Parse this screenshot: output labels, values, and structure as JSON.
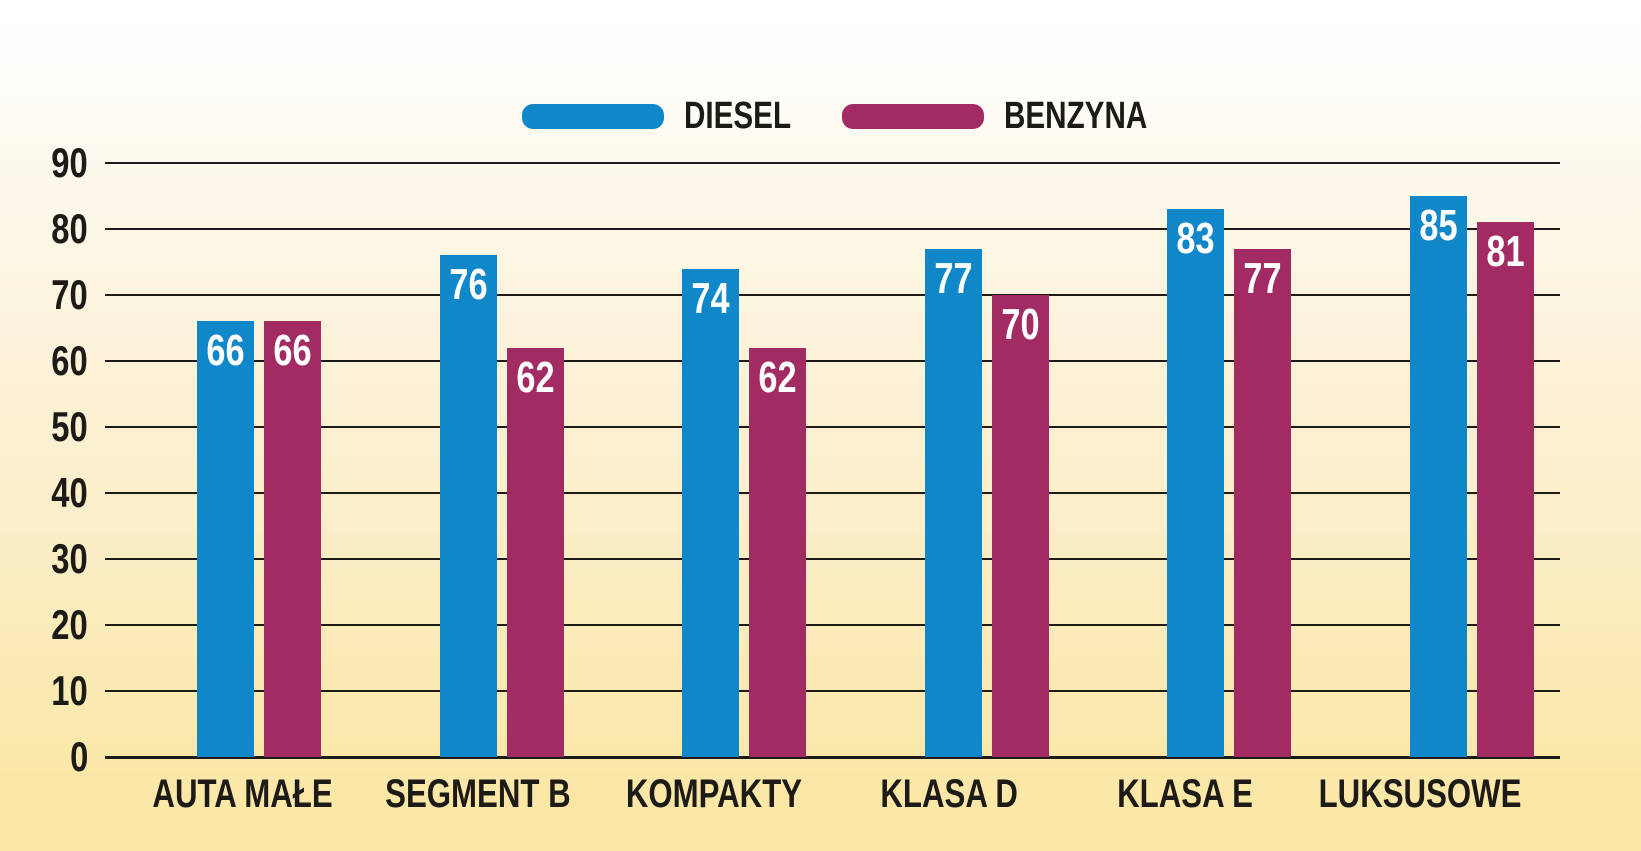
{
  "chart_data": {
    "type": "bar",
    "title": "",
    "categories": [
      "AUTA MAŁE",
      "SEGMENT B",
      "KOMPAKTY",
      "KLASA D",
      "KLASA E",
      "LUKSUSOWE"
    ],
    "series": [
      {
        "name": "DIESEL",
        "color": "#0f87c8",
        "values": [
          66,
          76,
          74,
          77,
          83,
          85
        ]
      },
      {
        "name": "BENZYNA",
        "color": "#a32b63",
        "values": [
          66,
          62,
          62,
          70,
          77,
          81
        ]
      }
    ],
    "ylim": [
      0,
      90
    ],
    "yticks": [
      0,
      10,
      20,
      30,
      40,
      50,
      60,
      70,
      80,
      90
    ],
    "xlabel": "",
    "ylabel": "",
    "grid": "horizontal",
    "legend_position": "top-center",
    "value_labels": "inside-bar-top-white"
  },
  "colors": {
    "background_top": "#ffffff",
    "background_bottom": "#fbe7a2",
    "gridline": "#1d1b17",
    "text": "#1d1b17",
    "value_label_text": "#ffffff"
  }
}
